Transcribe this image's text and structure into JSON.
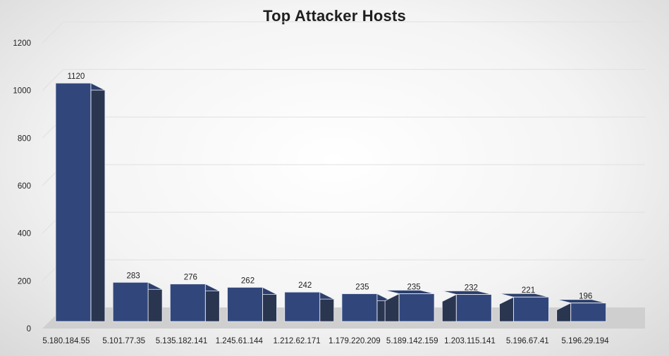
{
  "chart_data": {
    "type": "bar",
    "title": "Top Attacker Hosts",
    "xlabel": "",
    "ylabel": "",
    "categories": [
      "5.180.184.55",
      "5.101.77.35",
      "5.135.182.141",
      "1.245.61.144",
      "1.212.62.171",
      "1.179.220.209",
      "5.189.142.159",
      "1.203.115.141",
      "5.196.67.41",
      "5.196.29.194"
    ],
    "values": [
      1120,
      283,
      276,
      262,
      242,
      235,
      235,
      232,
      221,
      196
    ],
    "ylim": [
      0,
      1200
    ],
    "yticks": [
      0,
      200,
      400,
      600,
      800,
      1000,
      1200
    ],
    "grid": true,
    "legend": "none",
    "style": "3d-column",
    "colors": {
      "bar_front": "#31477c",
      "bar_top": "#2c3f6d",
      "bar_side": "#2a3550",
      "bar_edge": "#e8ecf4",
      "floor": "#cfcfcf",
      "gridline": "#e0e0e0"
    }
  }
}
